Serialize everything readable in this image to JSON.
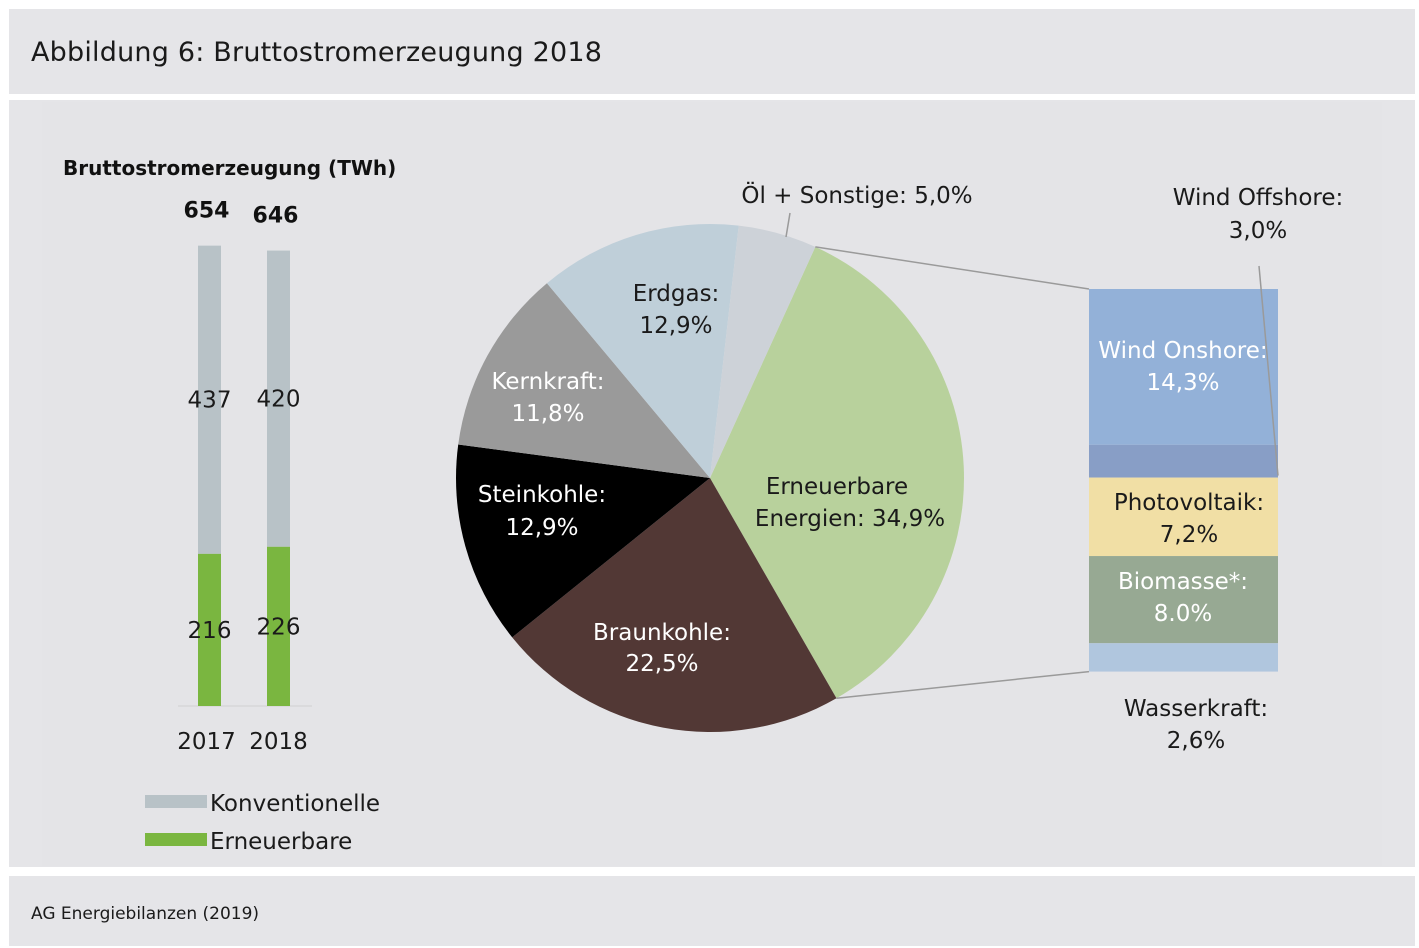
{
  "header": {
    "title": "Abbildung 6: Bruttostromerzeugung 2018"
  },
  "footer": {
    "source": "AG Energiebilanzen (2019)"
  },
  "colors": {
    "konventionelle": "#b8c2c7",
    "erneuerbare": "#7ab640",
    "erdgas": "#bfcfd9",
    "oel_sonstige": "#cdd2d8",
    "erneuerbare_pie": "#b8d19c",
    "braunkohle": "#523835",
    "steinkohle": "#000000",
    "kernkraft": "#9a9a9a",
    "wind_onshore": "#93b1d8",
    "wind_offshore": "#889ec6",
    "photovoltaik": "#f1dfa5",
    "biomasse": "#97a993",
    "wasserkraft": "#b0c6de"
  },
  "chart_data": [
    {
      "type": "bar",
      "title": "Bruttostromerzeugung (TWh)",
      "categories": [
        "2017",
        "2018"
      ],
      "totals": [
        "654",
        "646"
      ],
      "series": [
        {
          "name": "Erneuerbare",
          "values": [
            216,
            226
          ],
          "labels": [
            "216",
            "226"
          ]
        },
        {
          "name": "Konventionelle",
          "values": [
            437,
            420
          ],
          "labels": [
            "437",
            "420"
          ]
        }
      ],
      "stacked": true,
      "legend": [
        "Konventionelle",
        "Erneuerbare"
      ]
    },
    {
      "type": "pie",
      "slices": [
        {
          "name": "Erneuerbare Energien",
          "value": 34.9,
          "label_lines": [
            "Erneuerbare",
            "Energien: 34,9%"
          ]
        },
        {
          "name": "Braunkohle",
          "value": 22.5,
          "label_lines": [
            "Braunkohle:",
            "22,5%"
          ]
        },
        {
          "name": "Steinkohle",
          "value": 12.9,
          "label_lines": [
            "Steinkohle:",
            "12,9%"
          ]
        },
        {
          "name": "Kernkraft",
          "value": 11.8,
          "label_lines": [
            "Kernkraft:",
            "11,8%"
          ]
        },
        {
          "name": "Erdgas",
          "value": 12.9,
          "label_lines": [
            "Erdgas:",
            "12,9%"
          ]
        },
        {
          "name": "Öl + Sonstige",
          "value": 5.0,
          "label_lines": [
            "Öl + Sonstige: 5,0%"
          ]
        }
      ]
    },
    {
      "type": "bar",
      "stacked": true,
      "segments": [
        {
          "name": "Wind Onshore",
          "value": 14.3,
          "label_lines": [
            "Wind Onshore:",
            "14,3%"
          ]
        },
        {
          "name": "Wind Offshore",
          "value": 3.0,
          "label_lines": [
            "Wind Offshore:",
            "3,0%"
          ]
        },
        {
          "name": "Photovoltaik",
          "value": 7.2,
          "label_lines": [
            "Photovoltaik:",
            "7,2%"
          ]
        },
        {
          "name": "Biomasse*",
          "value": 8.0,
          "label_lines": [
            "Biomasse*:",
            "8.0%"
          ]
        },
        {
          "name": "Wasserkraft",
          "value": 2.6,
          "label_lines": [
            "Wasserkraft:",
            "2,6%"
          ]
        }
      ]
    }
  ]
}
